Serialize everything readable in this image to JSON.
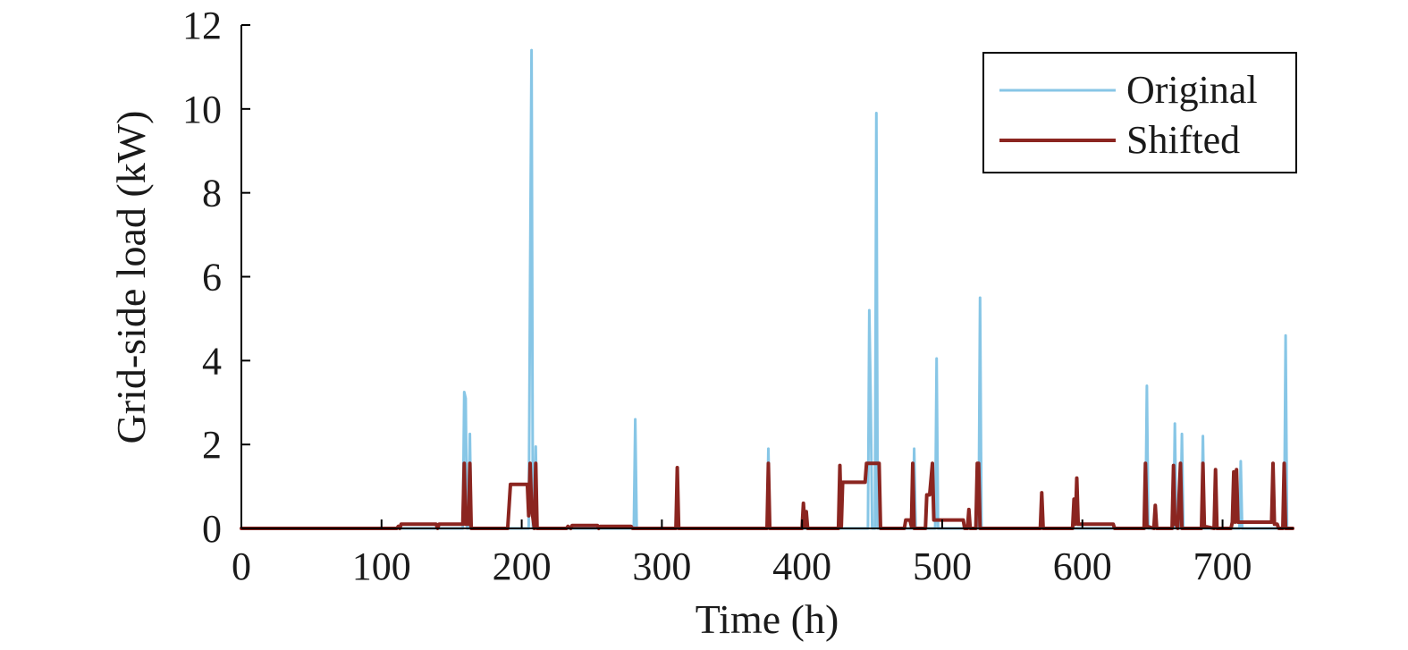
{
  "chart_data": {
    "type": "line",
    "title": "",
    "xlabel": "Time (h)",
    "ylabel": "Grid-side load (kW)",
    "xlim": [
      0,
      750
    ],
    "ylim": [
      0,
      12
    ],
    "xticks": [
      0,
      100,
      200,
      300,
      400,
      500,
      600,
      700
    ],
    "yticks": [
      0,
      2,
      4,
      6,
      8,
      10,
      12
    ],
    "grid": false,
    "legend_position": "top-right",
    "series": [
      {
        "name": "Original",
        "color": "#87c6e6",
        "stroke_width": 3,
        "points": [
          [
            0,
            0
          ],
          [
            158,
            0
          ],
          [
            159,
            3.25
          ],
          [
            160,
            3.1
          ],
          [
            161,
            0
          ],
          [
            162,
            0
          ],
          [
            163,
            2.25
          ],
          [
            164,
            0
          ],
          [
            205,
            0
          ],
          [
            206,
            6
          ],
          [
            207,
            11.4
          ],
          [
            208,
            0
          ],
          [
            209,
            0
          ],
          [
            210,
            1.95
          ],
          [
            211,
            0
          ],
          [
            280,
            0
          ],
          [
            281,
            2.6
          ],
          [
            282,
            0
          ],
          [
            375,
            0
          ],
          [
            376,
            1.9
          ],
          [
            377,
            0
          ],
          [
            447,
            0
          ],
          [
            448,
            5.2
          ],
          [
            449,
            3
          ],
          [
            450,
            0
          ],
          [
            452,
            0
          ],
          [
            453,
            9.9
          ],
          [
            454,
            0
          ],
          [
            479,
            0
          ],
          [
            480,
            1.9
          ],
          [
            481,
            0
          ],
          [
            495,
            0
          ],
          [
            496,
            4.05
          ],
          [
            497,
            0
          ],
          [
            526,
            0
          ],
          [
            527,
            5.5
          ],
          [
            528,
            0
          ],
          [
            645,
            0
          ],
          [
            646,
            3.4
          ],
          [
            647,
            0
          ],
          [
            665,
            0
          ],
          [
            666,
            2.5
          ],
          [
            667,
            0
          ],
          [
            670,
            0
          ],
          [
            671,
            2.25
          ],
          [
            672,
            0
          ],
          [
            685,
            0
          ],
          [
            686,
            2.2
          ],
          [
            687,
            0
          ],
          [
            712,
            0
          ],
          [
            713,
            1.6
          ],
          [
            714,
            0
          ],
          [
            744,
            0
          ],
          [
            745,
            4.6
          ],
          [
            746,
            0
          ],
          [
            750,
            0
          ]
        ]
      },
      {
        "name": "Shifted",
        "color": "#8b2520",
        "stroke_width": 4,
        "points": [
          [
            0,
            0
          ],
          [
            111,
            0
          ],
          [
            112,
            0.05
          ],
          [
            113,
            0
          ],
          [
            114,
            0.1
          ],
          [
            139,
            0.1
          ],
          [
            140,
            0
          ],
          [
            141,
            0.1
          ],
          [
            158,
            0.1
          ],
          [
            159,
            1.55
          ],
          [
            160,
            0.1
          ],
          [
            162,
            0.1
          ],
          [
            163,
            1.55
          ],
          [
            164,
            0
          ],
          [
            190,
            0
          ],
          [
            192,
            1.05
          ],
          [
            204,
            1.05
          ],
          [
            205,
            0.3
          ],
          [
            206,
            1.55
          ],
          [
            207,
            0.5
          ],
          [
            209,
            0
          ],
          [
            210,
            1.55
          ],
          [
            211,
            0
          ],
          [
            232,
            0
          ],
          [
            233,
            0.05
          ],
          [
            235,
            0
          ],
          [
            236,
            0.07
          ],
          [
            254,
            0.07
          ],
          [
            255,
            0
          ],
          [
            256,
            0.05
          ],
          [
            278,
            0.05
          ],
          [
            279,
            0
          ],
          [
            310,
            0
          ],
          [
            311,
            1.45
          ],
          [
            312,
            0
          ],
          [
            375,
            0
          ],
          [
            376,
            1.55
          ],
          [
            377,
            0
          ],
          [
            400,
            0
          ],
          [
            401,
            0.6
          ],
          [
            402,
            0.05
          ],
          [
            403,
            0.4
          ],
          [
            404,
            0
          ],
          [
            426,
            0
          ],
          [
            427,
            1.5
          ],
          [
            428,
            0.05
          ],
          [
            429,
            1.1
          ],
          [
            445,
            1.1
          ],
          [
            446,
            1.55
          ],
          [
            455,
            1.55
          ],
          [
            456,
            0
          ],
          [
            473,
            0
          ],
          [
            474,
            0.2
          ],
          [
            477,
            0.2
          ],
          [
            478,
            0.05
          ],
          [
            479,
            1.55
          ],
          [
            480,
            0
          ],
          [
            488,
            0
          ],
          [
            489,
            0.8
          ],
          [
            491,
            0.8
          ],
          [
            493,
            1.55
          ],
          [
            494,
            0.2
          ],
          [
            515,
            0.2
          ],
          [
            516,
            0
          ],
          [
            518,
            0
          ],
          [
            519,
            0.45
          ],
          [
            520,
            0
          ],
          [
            524,
            0
          ],
          [
            525,
            1.55
          ],
          [
            526,
            1.55
          ],
          [
            527,
            0
          ],
          [
            570,
            0
          ],
          [
            571,
            0.85
          ],
          [
            572,
            0
          ],
          [
            593,
            0
          ],
          [
            594,
            0.7
          ],
          [
            595,
            0.1
          ],
          [
            596,
            1.2
          ],
          [
            597,
            0.1
          ],
          [
            622,
            0.1
          ],
          [
            623,
            0
          ],
          [
            644,
            0
          ],
          [
            645,
            1.55
          ],
          [
            646,
            0.05
          ],
          [
            651,
            0
          ],
          [
            652,
            0.55
          ],
          [
            653,
            0
          ],
          [
            664,
            0
          ],
          [
            665,
            1.5
          ],
          [
            666,
            0.1
          ],
          [
            667,
            0.1
          ],
          [
            668,
            0
          ],
          [
            670,
            1.55
          ],
          [
            671,
            0
          ],
          [
            685,
            0
          ],
          [
            686,
            1.55
          ],
          [
            687,
            0.05
          ],
          [
            694,
            0
          ],
          [
            695,
            1.4
          ],
          [
            696,
            0
          ],
          [
            706,
            0
          ],
          [
            707,
            0.15
          ],
          [
            708,
            1.35
          ],
          [
            709,
            0.15
          ],
          [
            710,
            1.4
          ],
          [
            711,
            0.15
          ],
          [
            735,
            0.15
          ],
          [
            736,
            1.55
          ],
          [
            737,
            0.1
          ],
          [
            739,
            0.1
          ],
          [
            740,
            0
          ],
          [
            743,
            0
          ],
          [
            744,
            1.55
          ],
          [
            745,
            0
          ],
          [
            750,
            0
          ]
        ]
      }
    ]
  }
}
